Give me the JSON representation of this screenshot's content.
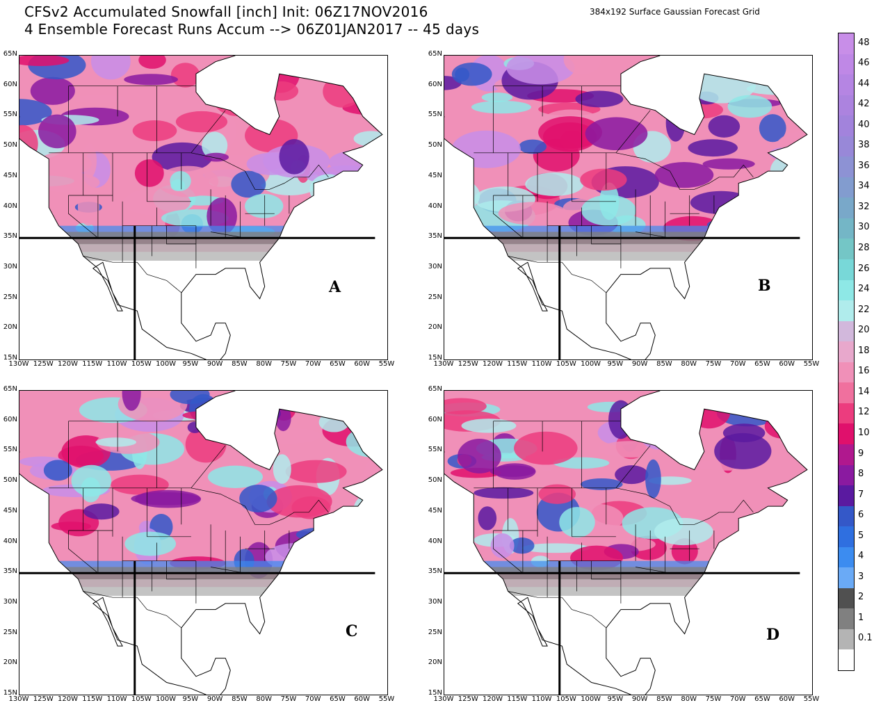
{
  "header": {
    "line1": "CFSv2 Accumulated Snowfall [inch] Init: 06Z17NOV2016",
    "line2": "4 Ensemble Forecast Runs Accum --> 06Z01JAN2017 -- 45 days",
    "grid_label": "384x192 Surface Gaussian Forecast Grid"
  },
  "lat_labels": [
    "65N",
    "60N",
    "55N",
    "50N",
    "45N",
    "40N",
    "35N",
    "30N",
    "25N",
    "20N",
    "15N"
  ],
  "lon_labels": [
    "130W",
    "125W",
    "120W",
    "115W",
    "110W",
    "105W",
    "100W",
    "95W",
    "90W",
    "85W",
    "80W",
    "75W",
    "70W",
    "65W",
    "60W",
    "55W"
  ],
  "panels": [
    {
      "letter": "A"
    },
    {
      "letter": "B"
    },
    {
      "letter": "C"
    },
    {
      "letter": "D"
    }
  ],
  "legend": {
    "labels": [
      "48",
      "46",
      "44",
      "42",
      "40",
      "38",
      "36",
      "34",
      "32",
      "30",
      "28",
      "26",
      "24",
      "22",
      "20",
      "18",
      "16",
      "14",
      "12",
      "10",
      "9",
      "8",
      "7",
      "6",
      "5",
      "4",
      "3",
      "2",
      "1",
      "0.1"
    ],
    "colors": [
      "#c88ee8",
      "#bf88e6",
      "#b585e3",
      "#ac83df",
      "#a283dc",
      "#9888d8",
      "#8d92d4",
      "#829ccf",
      "#79a8c9",
      "#74b6c6",
      "#74c6c6",
      "#78d8d8",
      "#8ee8e6",
      "#b0ecec",
      "#d2b8dc",
      "#e8a8cc",
      "#f090b8",
      "#f0709e",
      "#ec3c7e",
      "#e0106c",
      "#b0188e",
      "#8a1aa0",
      "#5a1aa0",
      "#3458c8",
      "#2f6fe0",
      "#3c8cf0",
      "#6aaaf6",
      "#505050",
      "#808080",
      "#b4b4b4",
      "#ffffff"
    ]
  }
}
